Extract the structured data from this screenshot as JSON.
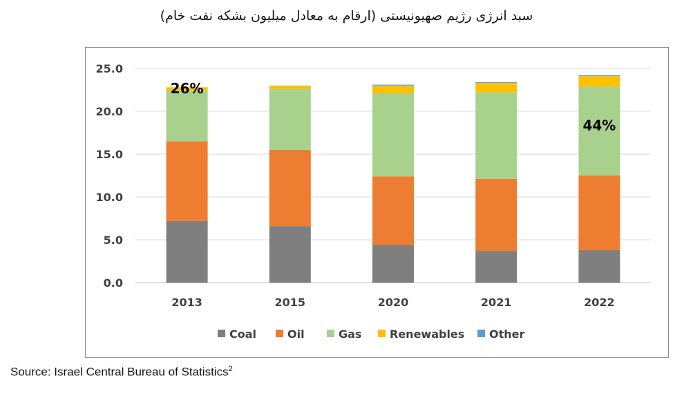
{
  "chart_data": {
    "type": "bar",
    "stacked": true,
    "title": "سبد انرژی رژیم صهیونیستی (ارقام به معادل میلیون بشکه نفت خام)",
    "categories": [
      "2013",
      "2015",
      "2020",
      "2021",
      "2022"
    ],
    "series": [
      {
        "name": "Coal",
        "color": "#7f7f7f",
        "values": [
          7.2,
          6.6,
          4.4,
          3.7,
          3.8
        ]
      },
      {
        "name": "Oil",
        "color": "#ed7d31",
        "values": [
          9.3,
          8.9,
          8.0,
          8.4,
          8.7
        ]
      },
      {
        "name": "Gas",
        "color": "#a9d18e",
        "values": [
          5.9,
          7.1,
          9.7,
          10.1,
          10.4
        ]
      },
      {
        "name": "Renewables",
        "color": "#ffc000",
        "values": [
          0.4,
          0.4,
          0.9,
          1.1,
          1.2
        ]
      },
      {
        "name": "Other",
        "color": "#5b9bd5",
        "values": [
          0.0,
          0.0,
          0.1,
          0.1,
          0.1
        ]
      }
    ],
    "ylim": [
      0,
      25
    ],
    "yticks": [
      "0.0",
      "5.0",
      "10.0",
      "15.0",
      "20.0",
      "25.0"
    ],
    "grid": true,
    "legend": "bottom",
    "annotations": [
      {
        "category": "2013",
        "series": "Gas",
        "text": "26%"
      },
      {
        "category": "2022",
        "series": "Gas",
        "text": "44%"
      }
    ]
  },
  "source": {
    "text": "Source: Israel Central Bureau of Statistics",
    "footnote": "2"
  }
}
